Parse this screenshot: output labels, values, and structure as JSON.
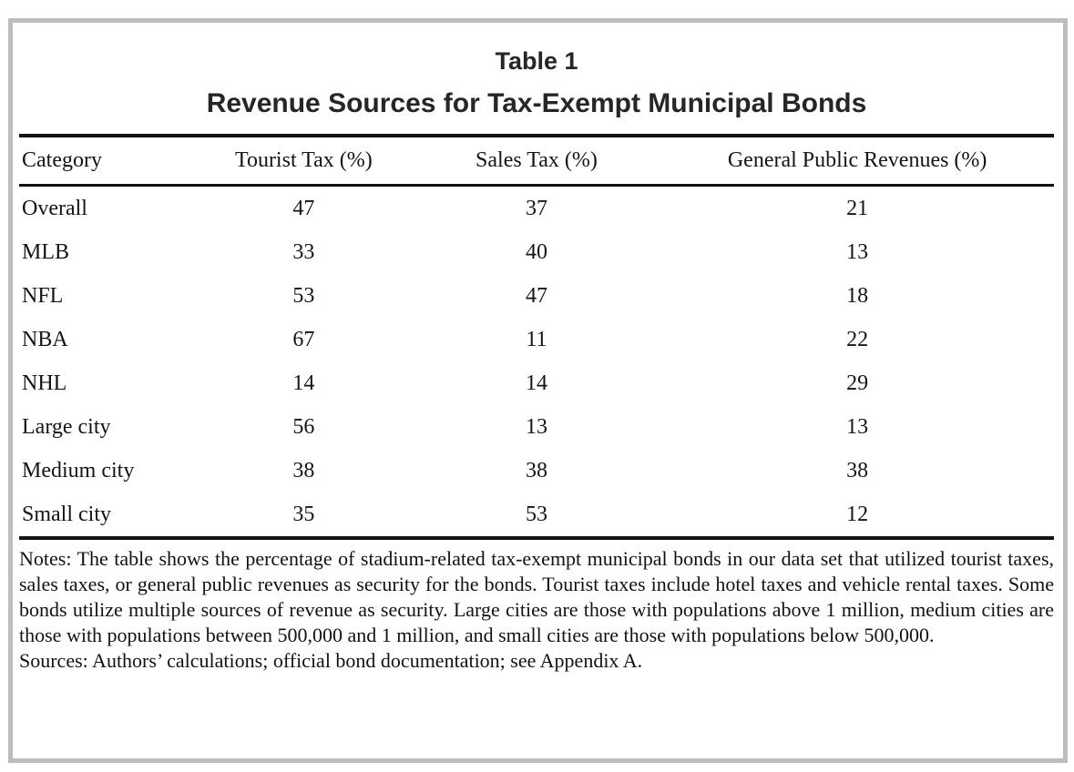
{
  "page": {
    "frame_border_color": "#bcbdc0",
    "rule_color": "#121212",
    "text_color": "#151515",
    "background_color": "#ffffff"
  },
  "table": {
    "title": "Table 1",
    "subtitle": "Revenue Sources for Tax-Exempt Municipal Bonds",
    "columns": [
      "Category",
      "Tourist Tax (%)",
      "Sales Tax (%)",
      "General Public Revenues (%)"
    ],
    "rows": [
      {
        "category": "Overall",
        "values": [
          47,
          37,
          21
        ]
      },
      {
        "category": "MLB",
        "values": [
          33,
          40,
          13
        ]
      },
      {
        "category": "NFL",
        "values": [
          53,
          47,
          18
        ]
      },
      {
        "category": "NBA",
        "values": [
          67,
          11,
          22
        ]
      },
      {
        "category": "NHL",
        "values": [
          14,
          14,
          29
        ]
      },
      {
        "category": "Large city",
        "values": [
          56,
          13,
          13
        ]
      },
      {
        "category": "Medium city",
        "values": [
          38,
          38,
          38
        ]
      },
      {
        "category": "Small city",
        "values": [
          35,
          53,
          12
        ]
      }
    ],
    "notes": "Notes: The table shows the percentage of stadium-related tax-exempt municipal bonds in our data set that utilized tourist taxes, sales taxes, or general public revenues as security for the bonds. Tourist taxes include hotel taxes and vehicle rental taxes. Some bonds utilize multiple sources of revenue as security. Large cities are those with populations above 1 million, medium cities are those with populations between 500,000 and 1 million, and small cities are those with populations below 500,000.",
    "sources": "Sources: Authors’ calculations; official bond documentation; see Appendix A."
  },
  "chart_data": {
    "type": "table",
    "title": "Table 1",
    "subtitle": "Revenue Sources for Tax-Exempt Municipal Bonds",
    "columns": [
      "Category",
      "Tourist Tax (%)",
      "Sales Tax (%)",
      "General Public Revenues (%)"
    ],
    "rows": [
      [
        "Overall",
        47,
        37,
        21
      ],
      [
        "MLB",
        33,
        40,
        13
      ],
      [
        "NFL",
        53,
        47,
        18
      ],
      [
        "NBA",
        67,
        11,
        22
      ],
      [
        "NHL",
        14,
        14,
        29
      ],
      [
        "Large city",
        56,
        13,
        13
      ],
      [
        "Medium city",
        38,
        38,
        38
      ],
      [
        "Small city",
        35,
        53,
        12
      ]
    ]
  }
}
